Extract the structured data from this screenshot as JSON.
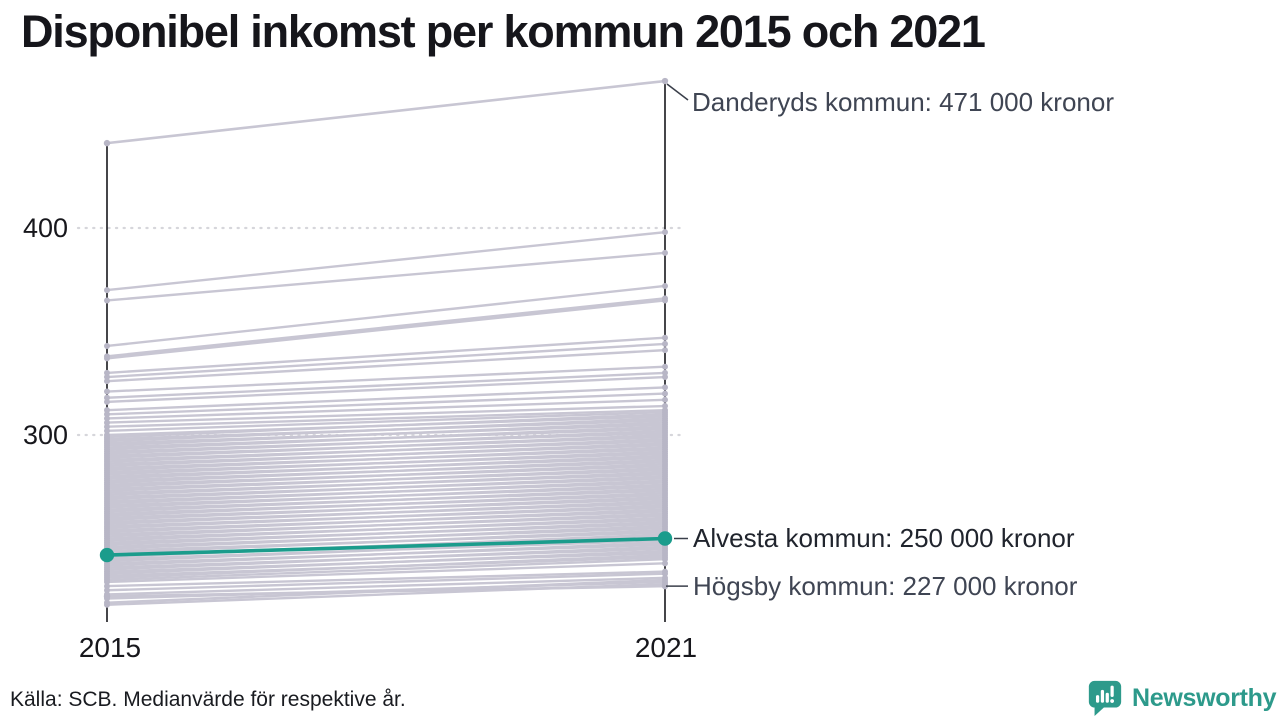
{
  "title": "Disponibel inkomst per kommun 2015 och 2021",
  "source": "Källa: SCB. Medianvärde för respektive år.",
  "branding": {
    "logo_text": "Newsworthy",
    "logo_icon": "newsworthy-speech-bubble-bar-chart-icon"
  },
  "colors": {
    "accent": "#1b9c8c",
    "line_gray": "#c8c6d3",
    "dot_gray": "#b8b6c6",
    "axis": "#17171c",
    "grid": "#d6d6db",
    "connector": "#3a3f4a",
    "label_gray": "#3f4553",
    "label_dark": "#20242d",
    "logo_teal": "#2d9a8b"
  },
  "annotations": {
    "danderyd": "Danderyds kommun: 471 000 kronor",
    "alvesta": "Alvesta kommun: 250 000 kronor",
    "hogsby": "Högsby kommun: 227 000 kronor"
  },
  "chart_data": {
    "type": "line",
    "subtype": "slope-chart",
    "title": "Disponibel inkomst per kommun 2015 och 2021",
    "unit": "tusen kronor",
    "x": [
      2015,
      2021
    ],
    "x_labels": [
      "2015",
      "2021"
    ],
    "y_ticks": [
      400,
      300
    ],
    "y_tick_labels": [
      "400",
      "300"
    ],
    "ylim": [
      210,
      480
    ],
    "grid": "dotted-horizontal",
    "series": [
      {
        "name": "Danderyds kommun",
        "values": [
          441,
          471
        ],
        "highlighted": false,
        "labeled": true
      },
      {
        "name": "Alvesta kommun",
        "values": [
          242,
          250
        ],
        "highlighted": true,
        "labeled": true
      },
      {
        "name": "Högsby kommun",
        "values": [
          222,
          227
        ],
        "highlighted": false,
        "labeled": true
      }
    ],
    "background_lines": [
      [
        370,
        398
      ],
      [
        365,
        388
      ],
      [
        343,
        372
      ],
      [
        338,
        366
      ],
      [
        337,
        365
      ],
      [
        330,
        347
      ],
      [
        328,
        344
      ],
      [
        326,
        341
      ],
      [
        321,
        333
      ],
      [
        318,
        330
      ],
      [
        316,
        328
      ],
      [
        312,
        323
      ],
      [
        310,
        320
      ],
      [
        308,
        317
      ],
      [
        306,
        314
      ],
      [
        218,
        228
      ],
      [
        219,
        230
      ],
      [
        221,
        229
      ],
      [
        223,
        231
      ],
      [
        225,
        233
      ],
      [
        227,
        234
      ],
      [
        229,
        238
      ],
      [
        230,
        240
      ],
      [
        231,
        242
      ],
      [
        232,
        241
      ],
      [
        233,
        244
      ],
      [
        234,
        243
      ],
      [
        235,
        246
      ],
      [
        236,
        245
      ],
      [
        237,
        248
      ],
      [
        238,
        247
      ],
      [
        239,
        250
      ],
      [
        240,
        249
      ],
      [
        241,
        252
      ],
      [
        242,
        251
      ],
      [
        243,
        254
      ],
      [
        244,
        253
      ],
      [
        245,
        256
      ],
      [
        246,
        255
      ],
      [
        247,
        258
      ],
      [
        248,
        257
      ],
      [
        249,
        260
      ],
      [
        250,
        259
      ],
      [
        251,
        262
      ],
      [
        252,
        261
      ],
      [
        253,
        264
      ],
      [
        254,
        263
      ],
      [
        255,
        266
      ],
      [
        256,
        265
      ],
      [
        257,
        268
      ],
      [
        258,
        267
      ],
      [
        259,
        270
      ],
      [
        260,
        269
      ],
      [
        261,
        272
      ],
      [
        262,
        271
      ],
      [
        263,
        274
      ],
      [
        264,
        273
      ],
      [
        265,
        276
      ],
      [
        266,
        275
      ],
      [
        267,
        278
      ],
      [
        268,
        277
      ],
      [
        269,
        280
      ],
      [
        270,
        279
      ],
      [
        271,
        282
      ],
      [
        272,
        281
      ],
      [
        273,
        284
      ],
      [
        274,
        283
      ],
      [
        275,
        286
      ],
      [
        276,
        285
      ],
      [
        277,
        288
      ],
      [
        278,
        287
      ],
      [
        279,
        290
      ],
      [
        280,
        289
      ],
      [
        281,
        292
      ],
      [
        282,
        291
      ],
      [
        283,
        294
      ],
      [
        284,
        293
      ],
      [
        285,
        296
      ],
      [
        286,
        295
      ],
      [
        287,
        298
      ],
      [
        288,
        297
      ],
      [
        289,
        300
      ],
      [
        290,
        299
      ],
      [
        291,
        302
      ],
      [
        292,
        301
      ],
      [
        293,
        304
      ],
      [
        294,
        303
      ],
      [
        295,
        306
      ],
      [
        296,
        305
      ],
      [
        297,
        308
      ],
      [
        298,
        307
      ],
      [
        299,
        310
      ],
      [
        300,
        309
      ],
      [
        302,
        311
      ],
      [
        304,
        312
      ]
    ]
  }
}
